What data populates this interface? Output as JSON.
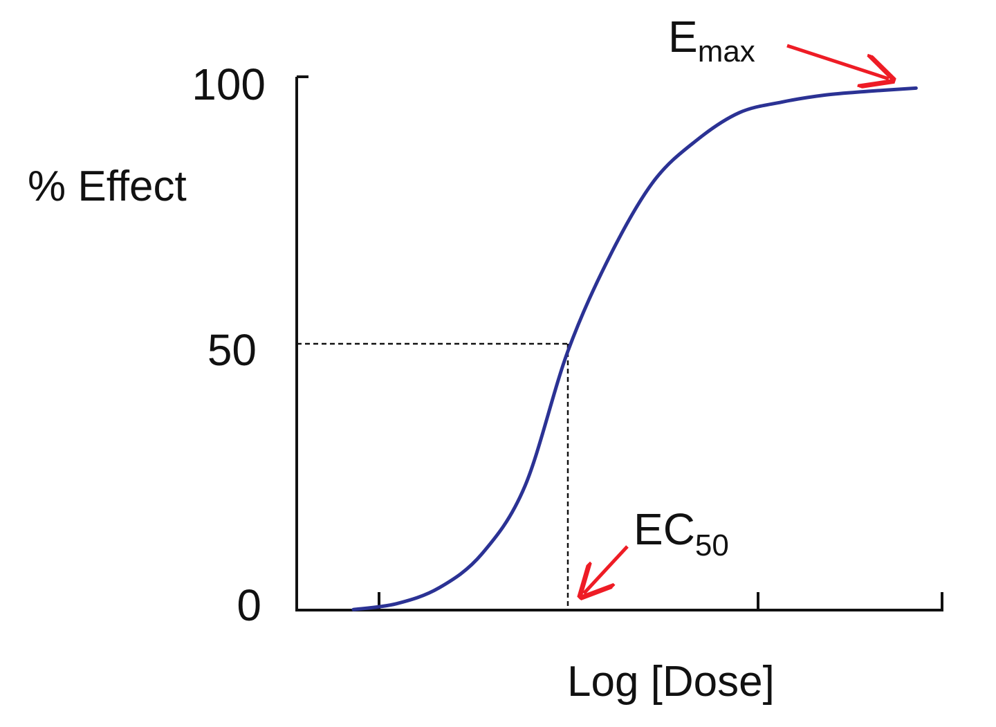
{
  "chart_data": {
    "type": "line",
    "title": "",
    "xlabel": "Log [Dose]",
    "ylabel": "% Effect",
    "y_ticks": [
      "0",
      "50",
      "100"
    ],
    "x_ticks_labeled": false,
    "ylim": [
      0,
      100
    ],
    "series": [
      {
        "color": "#2b3294",
        "shape": "sigmoid dose-response",
        "x": [
          -1.25,
          -1.0,
          -0.75,
          -0.5,
          -0.25,
          0.0,
          0.25,
          0.5,
          0.75,
          1.0,
          1.25,
          1.5,
          1.75,
          2.03
        ],
        "y": [
          0.1,
          1.2,
          4.2,
          10.6,
          23.3,
          48.6,
          66.8,
          80.5,
          88.2,
          93.4,
          95.4,
          96.7,
          97.4,
          98.0
        ]
      }
    ],
    "reference_lines": {
      "ec50_x": 0.0,
      "ec50_y": 50,
      "style": "dashed"
    },
    "annotations": {
      "emax": {
        "main": "E",
        "sub": "max",
        "arrow_color": "#ee1c25"
      },
      "ec50": {
        "main": "EC",
        "sub": "50",
        "arrow_color": "#ee1c25"
      }
    },
    "grid": false,
    "legend": "none"
  }
}
